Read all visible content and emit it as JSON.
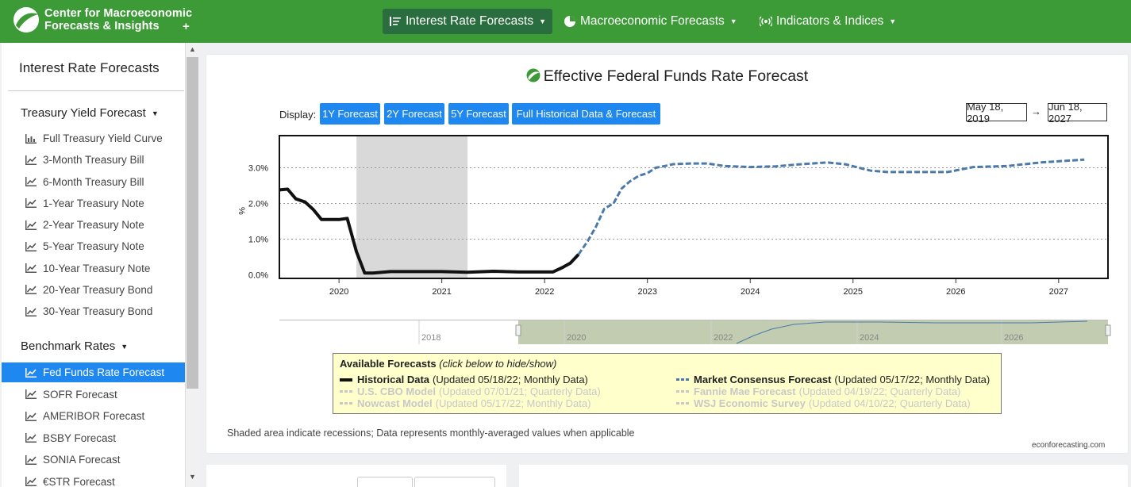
{
  "brand": {
    "line1": "Center for Macroeconomic",
    "line2": "Forecasts & Insights",
    "plus": "+"
  },
  "nav": [
    {
      "label": "Interest Rate Forecasts",
      "icon": "list-icon",
      "active": true
    },
    {
      "label": "Macroeconomic Forecasts",
      "icon": "pie-chart-icon",
      "active": false
    },
    {
      "label": "Indicators & Indices",
      "icon": "broadcast-icon",
      "active": false
    }
  ],
  "sidebar": {
    "title": "Interest Rate Forecasts",
    "sections": [
      {
        "label": "Treasury Yield Forecast",
        "items": [
          "Full Treasury Yield Curve",
          "3-Month Treasury Bill",
          "6-Month Treasury Bill",
          "1-Year Treasury Note",
          "2-Year Treasury Note",
          "5-Year Treasury Note",
          "10-Year Treasury Note",
          "20-Year Treasury Bond",
          "30-Year Treasury Bond"
        ]
      },
      {
        "label": "Benchmark Rates",
        "items": [
          "Fed Funds Rate Forecast",
          "SOFR Forecast",
          "AMERIBOR Forecast",
          "BSBY Forecast",
          "SONIA Forecast",
          "€STR Forecast"
        ]
      }
    ],
    "active_item": "Fed Funds Rate Forecast"
  },
  "chart": {
    "title": "Effective Federal Funds Rate Forecast",
    "display_label": "Display:",
    "buttons": [
      "1Y Forecast",
      "2Y Forecast",
      "5Y Forecast",
      "Full Historical Data & Forecast"
    ],
    "start_date": "May 18, 2019",
    "arrow": "→",
    "end_date": "Jun 18, 2027",
    "legend": {
      "heading": "Available Forecasts",
      "hint": "(click below to hide/show)",
      "items": [
        {
          "name": "Historical Data",
          "detail": "(Updated 05/18/22; Monthly Data)",
          "visible": true,
          "color": "#111111"
        },
        {
          "name": "Market Consensus Forecast",
          "detail": "(Updated 05/17/22; Monthly Data)",
          "visible": true,
          "color": "#4a79aa"
        },
        {
          "name": "U.S. CBO Model",
          "detail": "(Updated 07/01/21; Quarterly Data)",
          "visible": false,
          "color": "#c8c8c8"
        },
        {
          "name": "Fannie Mae Forecast",
          "detail": "(Updated 04/19/22; Quarterly Data)",
          "visible": false,
          "color": "#c8c8c8"
        },
        {
          "name": "Nowcast Model",
          "detail": "(Updated 05/17/22; Monthly Data)",
          "visible": false,
          "color": "#c8c8c8"
        },
        {
          "name": "WSJ Economic Survey",
          "detail": "(Updated 04/10/22; Quarterly Data)",
          "visible": false,
          "color": "#c8c8c8"
        }
      ]
    },
    "footnote": "Shaded area indicate recessions; Data represents monthly-averaged values when applicable",
    "credit": "econforecasting.com"
  },
  "chart_data": {
    "type": "line",
    "ylabel": "%",
    "y_ticks": [
      "0.0%",
      "1.0%",
      "2.0%",
      "3.0%"
    ],
    "ylim": [
      -0.1,
      3.9
    ],
    "xlim": [
      2019.42,
      2027.48
    ],
    "x_ticks": [
      "2020",
      "2021",
      "2022",
      "2023",
      "2024",
      "2025",
      "2026",
      "2027"
    ],
    "recession": [
      2020.17,
      2021.25
    ],
    "series": [
      {
        "name": "Historical Data",
        "style": "solid",
        "color": "#111111",
        "x": [
          2019.42,
          2019.5,
          2019.58,
          2019.67,
          2019.75,
          2019.83,
          2019.92,
          2020.0,
          2020.08,
          2020.17,
          2020.25,
          2020.33,
          2020.5,
          2020.75,
          2021.0,
          2021.25,
          2021.5,
          2021.75,
          2022.0,
          2022.08,
          2022.17,
          2022.25,
          2022.33
        ],
        "y": [
          2.38,
          2.4,
          2.13,
          2.04,
          1.83,
          1.55,
          1.55,
          1.55,
          1.58,
          0.65,
          0.05,
          0.05,
          0.09,
          0.09,
          0.09,
          0.07,
          0.1,
          0.08,
          0.08,
          0.08,
          0.2,
          0.33,
          0.57
        ]
      },
      {
        "name": "Market Consensus Forecast",
        "style": "dashed",
        "color": "#4a79aa",
        "x": [
          2022.33,
          2022.42,
          2022.5,
          2022.58,
          2022.67,
          2022.75,
          2022.83,
          2022.92,
          2023.0,
          2023.08,
          2023.17,
          2023.25,
          2023.42,
          2023.58,
          2023.75,
          2024.0,
          2024.25,
          2024.5,
          2024.75,
          2024.92,
          2025.17,
          2025.33,
          2025.58,
          2025.92,
          2026.17,
          2026.5,
          2026.83,
          2027.25
        ],
        "y": [
          0.57,
          0.95,
          1.35,
          1.85,
          2.0,
          2.42,
          2.62,
          2.78,
          2.85,
          3.0,
          3.05,
          3.1,
          3.12,
          3.12,
          3.05,
          3.02,
          3.04,
          3.1,
          3.15,
          3.1,
          2.92,
          2.88,
          2.88,
          2.88,
          3.02,
          3.05,
          3.15,
          3.23
        ]
      }
    ],
    "navigator": {
      "ticks": [
        "2018",
        "2020",
        "2022",
        "2024",
        "2026"
      ]
    }
  }
}
